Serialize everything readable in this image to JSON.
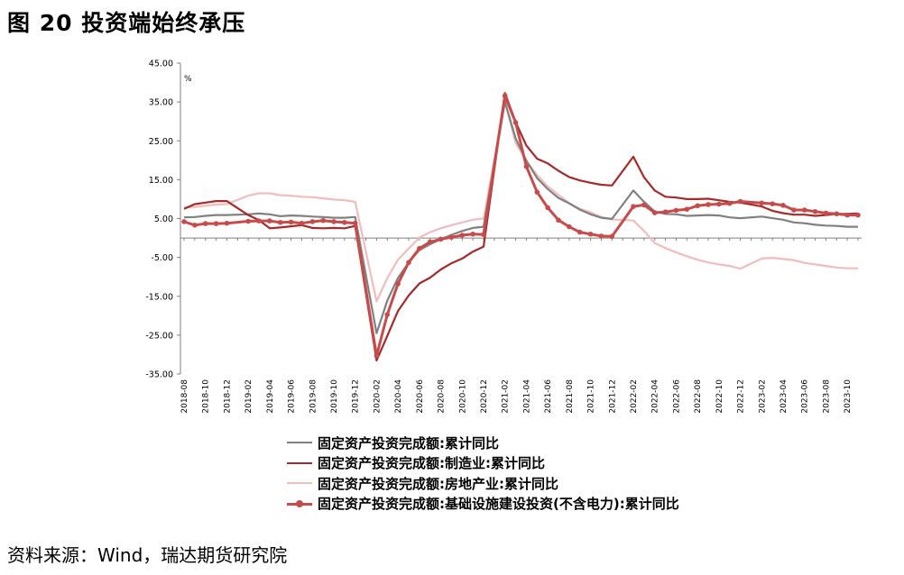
{
  "figure_title": "图 20 投资端始终承压",
  "source": "资料来源：Wind，瑞达期货研究院",
  "chart_data": {
    "type": "line",
    "title": "",
    "unit_label": "%",
    "xlabel": "",
    "ylabel": "",
    "ylim": [
      -35,
      45
    ],
    "yticks": [
      "45.00",
      "35.00",
      "25.00",
      "15.00",
      "5.00",
      "-5.00",
      "-15.00",
      "-25.00",
      "-35.00"
    ],
    "ytick_values": [
      45,
      35,
      25,
      15,
      5,
      -5,
      -15,
      -25,
      -35
    ],
    "grid": false,
    "legend_position": "bottom",
    "x": [
      "2018-08",
      "2018-09",
      "2018-10",
      "2018-11",
      "2018-12",
      "2019-01",
      "2019-02",
      "2019-03",
      "2019-04",
      "2019-05",
      "2019-06",
      "2019-07",
      "2019-08",
      "2019-09",
      "2019-10",
      "2019-11",
      "2019-12",
      "2020-01",
      "2020-02",
      "2020-03",
      "2020-04",
      "2020-05",
      "2020-06",
      "2020-07",
      "2020-08",
      "2020-09",
      "2020-10",
      "2020-11",
      "2020-12",
      "2021-01",
      "2021-02",
      "2021-03",
      "2021-04",
      "2021-05",
      "2021-06",
      "2021-07",
      "2021-08",
      "2021-09",
      "2021-10",
      "2021-11",
      "2021-12",
      "2022-01",
      "2022-02",
      "2022-03",
      "2022-04",
      "2022-05",
      "2022-06",
      "2022-07",
      "2022-08",
      "2022-09",
      "2022-10",
      "2022-11",
      "2022-12",
      "2023-01",
      "2023-02",
      "2023-03",
      "2023-04",
      "2023-05",
      "2023-06",
      "2023-07",
      "2023-08",
      "2023-09",
      "2023-10",
      "2023-11"
    ],
    "xtick_labels": [
      "2018-08",
      "2018-10",
      "2018-12",
      "2019-02",
      "2019-04",
      "2019-06",
      "2019-08",
      "2019-10",
      "2019-12",
      "2020-02",
      "2020-04",
      "2020-06",
      "2020-08",
      "2020-10",
      "2020-12",
      "2021-02",
      "2021-04",
      "2021-06",
      "2021-08",
      "2021-10",
      "2021-12",
      "2022-02",
      "2022-04",
      "2022-06",
      "2022-08",
      "2022-10",
      "2022-12",
      "2023-02",
      "2023-04",
      "2023-06",
      "2023-08",
      "2023-10"
    ],
    "series": [
      {
        "name": "固定资产投资完成额:累计同比",
        "color": "#808080",
        "marker": false,
        "values": [
          5.3,
          5.4,
          5.7,
          5.9,
          5.9,
          null,
          6.1,
          6.3,
          6.1,
          5.6,
          5.8,
          5.7,
          5.5,
          5.4,
          5.2,
          5.2,
          5.4,
          null,
          -24.5,
          -16.1,
          -10.3,
          -6.3,
          -3.1,
          -1.6,
          -0.3,
          0.8,
          1.8,
          2.6,
          2.9,
          null,
          35.0,
          25.6,
          19.9,
          15.4,
          12.6,
          10.3,
          8.9,
          7.3,
          6.1,
          5.2,
          4.9,
          null,
          12.2,
          9.3,
          6.8,
          6.2,
          6.1,
          5.7,
          5.8,
          5.9,
          5.8,
          5.3,
          5.1,
          null,
          5.5,
          5.1,
          4.7,
          4.0,
          3.8,
          3.4,
          3.2,
          3.1,
          2.9,
          2.9
        ]
      },
      {
        "name": "固定资产投资完成额:制造业:累计同比",
        "color": "#a52a2a",
        "marker": false,
        "values": [
          7.5,
          8.7,
          9.1,
          9.5,
          9.5,
          null,
          5.9,
          4.6,
          2.5,
          2.7,
          3.0,
          3.3,
          2.6,
          2.5,
          2.6,
          2.5,
          3.1,
          null,
          -31.5,
          -25.2,
          -18.8,
          -14.8,
          -11.7,
          -10.2,
          -8.1,
          -6.5,
          -5.3,
          -3.5,
          -2.2,
          null,
          37.3,
          29.8,
          23.8,
          20.4,
          19.2,
          17.3,
          15.7,
          14.8,
          14.2,
          13.7,
          13.5,
          null,
          20.9,
          15.6,
          12.2,
          10.6,
          10.4,
          10.0,
          10.0,
          10.1,
          9.7,
          9.3,
          9.1,
          null,
          8.1,
          7.0,
          6.4,
          6.0,
          6.0,
          5.7,
          5.9,
          6.2,
          6.2,
          6.3
        ]
      },
      {
        "name": "固定资产投资完成额:房地产业:累计同比",
        "color": "#f0bcbc",
        "marker": false,
        "values": [
          7.8,
          8.0,
          8.3,
          8.6,
          8.7,
          null,
          10.9,
          11.5,
          11.5,
          11.0,
          10.9,
          10.6,
          10.5,
          10.2,
          9.9,
          9.7,
          9.3,
          null,
          -16.3,
          -10.3,
          -5.6,
          -2.7,
          0.1,
          1.5,
          2.5,
          3.3,
          4.0,
          4.7,
          5.0,
          null,
          35.2,
          24.4,
          19.8,
          16.2,
          13.3,
          11.1,
          9.0,
          7.5,
          6.6,
          5.4,
          4.8,
          null,
          4.5,
          1.8,
          -1.3,
          -2.6,
          -3.7,
          -4.7,
          -5.6,
          -6.3,
          -6.8,
          -7.2,
          -7.9,
          null,
          -5.3,
          -5.1,
          -5.4,
          -5.7,
          -6.4,
          -6.8,
          -7.2,
          -7.6,
          -7.8,
          -7.8
        ]
      },
      {
        "name": "固定资产投资完成额:基础设施建设投资(不含电力):累计同比",
        "color": "#c84b4b",
        "marker": true,
        "values": [
          4.2,
          3.3,
          3.7,
          3.7,
          3.8,
          null,
          4.3,
          4.4,
          4.4,
          4.0,
          4.1,
          3.8,
          4.2,
          4.5,
          4.2,
          4.0,
          3.8,
          null,
          -30.3,
          -19.7,
          -11.8,
          -6.3,
          -2.7,
          -1.0,
          -0.3,
          0.2,
          0.7,
          1.0,
          0.9,
          null,
          36.6,
          29.7,
          18.4,
          11.8,
          7.8,
          4.6,
          2.9,
          1.5,
          1.0,
          0.5,
          0.4,
          null,
          8.1,
          8.5,
          6.5,
          6.7,
          7.1,
          7.4,
          8.3,
          8.6,
          8.7,
          8.9,
          9.4,
          null,
          9.0,
          8.8,
          8.4,
          7.2,
          7.2,
          6.8,
          6.4,
          6.2,
          5.9,
          5.9
        ]
      }
    ]
  }
}
